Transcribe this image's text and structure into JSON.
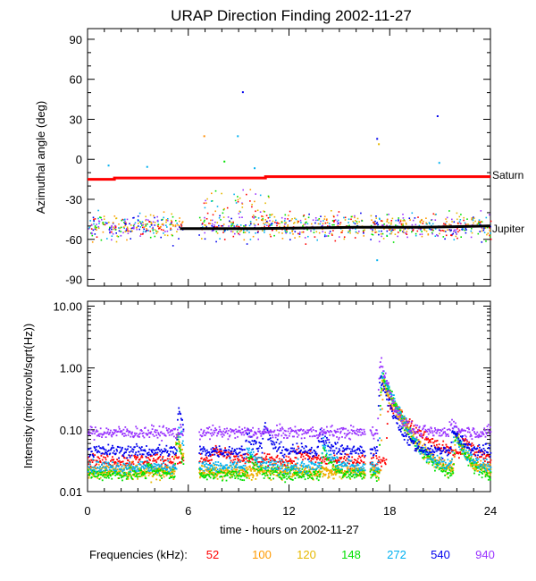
{
  "chart_data": [
    {
      "type": "scatter",
      "title": "URAP Direction Finding  2002-11-27",
      "ylabel": "Azimuthal angle (deg)",
      "xlim": [
        0,
        24
      ],
      "ylim": [
        -95,
        98
      ],
      "yticks": [
        90,
        60,
        30,
        0,
        -30,
        -60,
        -90
      ],
      "series": [
        {
          "name": "Saturn",
          "color": "#ff0000",
          "x": [
            0,
            1.6,
            1.6,
            10.6,
            10.6,
            24
          ],
          "y": [
            -15,
            -15,
            -14,
            -14,
            -13,
            -13
          ]
        },
        {
          "name": "Jupiter",
          "color": "#000000",
          "x": [
            5.5,
            10,
            16,
            20,
            24
          ],
          "y": [
            -52,
            -52,
            -51,
            -51,
            -50
          ]
        }
      ],
      "annotations": [
        {
          "text": "Saturn",
          "x": 24,
          "y": -13
        },
        {
          "text": "Jupiter",
          "x": 24,
          "y": -50
        }
      ],
      "outliers": [
        {
          "x": 9.2,
          "y": 51,
          "color": "#0000ee"
        },
        {
          "x": 20.8,
          "y": 33,
          "color": "#0000ee"
        },
        {
          "x": 17.2,
          "y": 16,
          "color": "#0000ee"
        },
        {
          "x": 8.9,
          "y": 18,
          "color": "#00b0f0"
        },
        {
          "x": 6.9,
          "y": 18,
          "color": "#ff8c00"
        },
        {
          "x": 1.2,
          "y": -4,
          "color": "#00b0f0"
        },
        {
          "x": 3.5,
          "y": -5,
          "color": "#00b0f0"
        },
        {
          "x": 9.9,
          "y": -6,
          "color": "#00b0f0"
        },
        {
          "x": 20.9,
          "y": -2,
          "color": "#00b0f0"
        },
        {
          "x": 17.3,
          "y": 12,
          "color": "#e6b800"
        },
        {
          "x": 17.2,
          "y": -75,
          "color": "#00b0f0"
        },
        {
          "x": 8.1,
          "y": -1,
          "color": "#00e000"
        }
      ]
    },
    {
      "type": "line",
      "ylabel": "Intensity (microvolt/sqrt(Hz))",
      "xlabel": "time - hours on 2002-11-27",
      "xlim": [
        0,
        24
      ],
      "xticks": [
        0,
        6,
        12,
        18,
        24
      ],
      "yscale": "log",
      "ylim": [
        0.01,
        12
      ],
      "yticks": [
        "10.00",
        "1.00",
        "0.10",
        "0.01"
      ],
      "gaps": [
        [
          5.7,
          6.6
        ],
        [
          16.5,
          16.8
        ]
      ],
      "legend_title": "Frequencies (kHz):",
      "series": [
        {
          "name": "52",
          "color": "#ff0000",
          "base": 0.032,
          "events": [
            {
              "t": 7.5,
              "p": 0.05,
              "w": 1.2
            },
            {
              "t": 12.5,
              "p": 0.045,
              "w": 1.0
            },
            {
              "t": 17.9,
              "p": 0.28,
              "w": 2.5
            },
            {
              "t": 22.3,
              "p": 0.07,
              "w": 1.5
            }
          ]
        },
        {
          "name": "100",
          "color": "#ff9900",
          "base": 0.022,
          "events": [
            {
              "t": 5.3,
              "p": 0.08,
              "w": 0.5
            },
            {
              "t": 17.6,
              "p": 0.55,
              "w": 1.6
            },
            {
              "t": 21.9,
              "p": 0.08,
              "w": 1.0
            }
          ]
        },
        {
          "name": "120",
          "color": "#e6b800",
          "base": 0.02,
          "events": [
            {
              "t": 5.3,
              "p": 0.09,
              "w": 0.5
            },
            {
              "t": 17.5,
              "p": 0.6,
              "w": 1.5
            },
            {
              "t": 21.9,
              "p": 0.09,
              "w": 1.0
            }
          ]
        },
        {
          "name": "148",
          "color": "#00e000",
          "base": 0.019,
          "events": [
            {
              "t": 3.6,
              "p": 0.03,
              "w": 0.5
            },
            {
              "t": 5.3,
              "p": 0.07,
              "w": 0.5
            },
            {
              "t": 9.6,
              "p": 0.035,
              "w": 0.8
            },
            {
              "t": 14.0,
              "p": 0.05,
              "w": 0.8
            },
            {
              "t": 17.5,
              "p": 0.75,
              "w": 1.4
            },
            {
              "t": 21.9,
              "p": 0.08,
              "w": 1.0
            }
          ]
        },
        {
          "name": "272",
          "color": "#00b0f0",
          "base": 0.025,
          "events": [
            {
              "t": 5.4,
              "p": 0.12,
              "w": 0.5
            },
            {
              "t": 9.5,
              "p": 0.05,
              "w": 0.8
            },
            {
              "t": 14.0,
              "p": 0.06,
              "w": 0.8
            },
            {
              "t": 17.5,
              "p": 0.85,
              "w": 1.3
            },
            {
              "t": 21.8,
              "p": 0.09,
              "w": 1.0
            }
          ]
        },
        {
          "name": "540",
          "color": "#0000ee",
          "base": 0.045,
          "events": [
            {
              "t": 5.4,
              "p": 0.22,
              "w": 0.5
            },
            {
              "t": 9.5,
              "p": 0.09,
              "w": 0.8
            },
            {
              "t": 10.5,
              "p": 0.12,
              "w": 0.6
            },
            {
              "t": 13.8,
              "p": 0.09,
              "w": 0.8
            },
            {
              "t": 17.4,
              "p": 0.7,
              "w": 1.0
            },
            {
              "t": 21.7,
              "p": 0.1,
              "w": 1.0
            }
          ]
        },
        {
          "name": "940",
          "color": "#9933ff",
          "base": 0.09,
          "events": [
            {
              "t": 17.4,
              "p": 1.4,
              "w": 0.8
            },
            {
              "t": 21.6,
              "p": 0.14,
              "w": 0.6
            }
          ]
        }
      ]
    }
  ]
}
